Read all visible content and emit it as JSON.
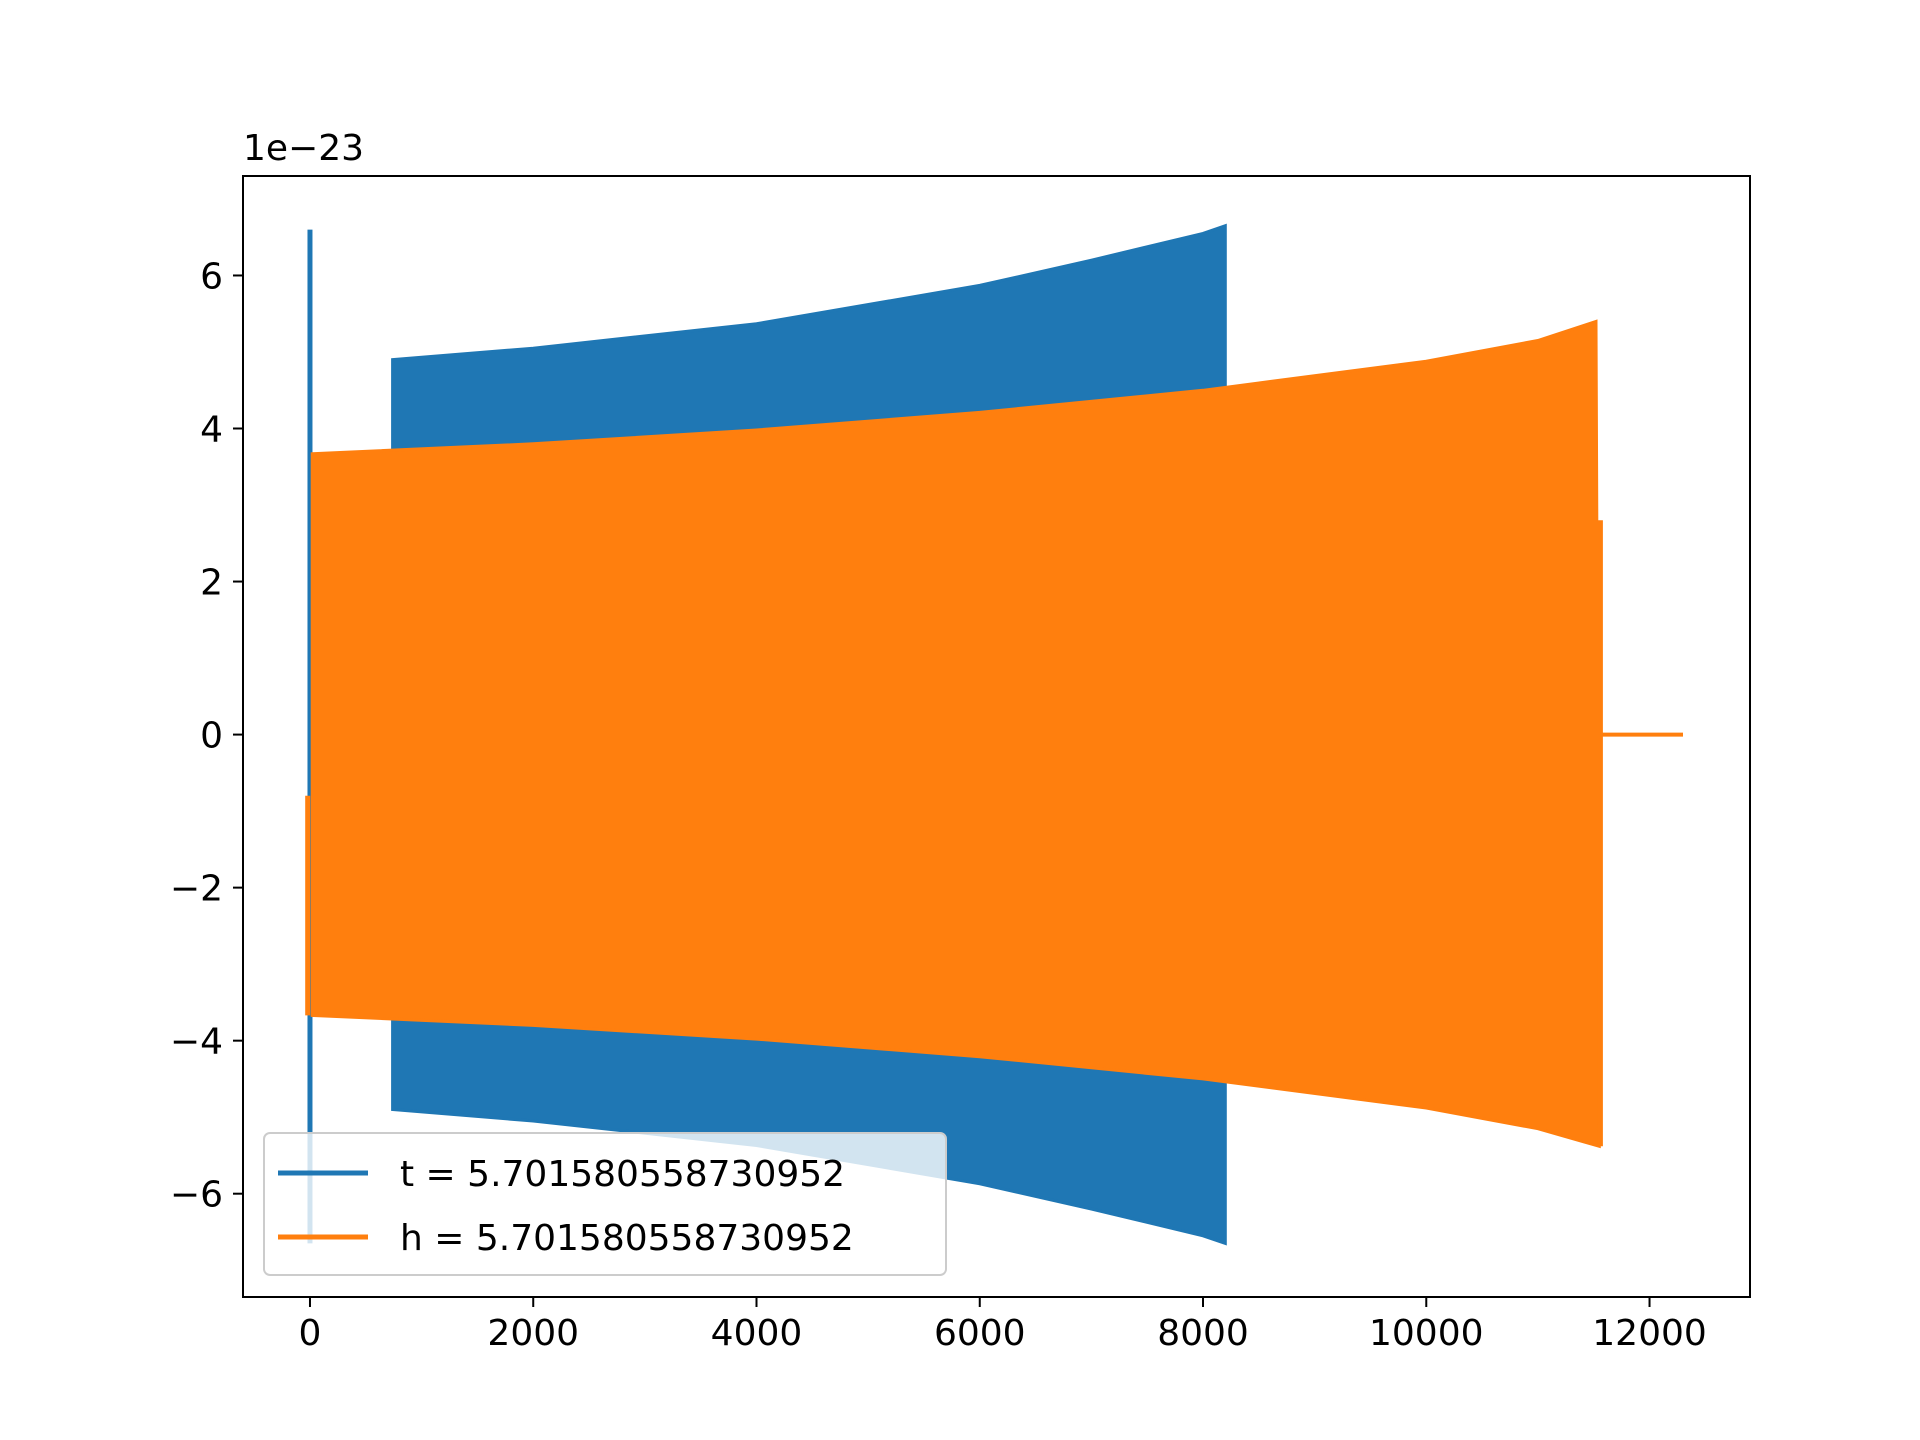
{
  "chart_data": {
    "type": "line",
    "title": "",
    "xlabel": "",
    "ylabel": "",
    "y_offset_label": "1e−23",
    "y_scale_exponent": -23,
    "xlim": [
      -600,
      12900
    ],
    "ylim": [
      -7.35,
      7.3
    ],
    "x_ticks": [
      0,
      2000,
      4000,
      6000,
      8000,
      10000,
      12000
    ],
    "x_tick_labels": [
      "0",
      "2000",
      "4000",
      "6000",
      "8000",
      "10000",
      "12000"
    ],
    "y_ticks": [
      -6,
      -4,
      -2,
      0,
      2,
      4,
      6
    ],
    "y_tick_labels": [
      "−6",
      "−4",
      "−2",
      "0",
      "2",
      "4",
      "6"
    ],
    "grid": false,
    "legend_position": "lower-left",
    "series": [
      {
        "name": "t = 5.701580558730952",
        "color": "#1f77b4",
        "description_kind": "dense-oscillation-envelope",
        "spike": {
          "x": 0,
          "ymin": -6.65,
          "ymax": 6.6
        },
        "x_start": 740,
        "x_end": 8200,
        "envelope_upper": [
          [
            740,
            4.9
          ],
          [
            2000,
            5.05
          ],
          [
            4000,
            5.37
          ],
          [
            6000,
            5.87
          ],
          [
            7000,
            6.2
          ],
          [
            8000,
            6.55
          ],
          [
            8200,
            6.65
          ]
        ],
        "envelope_lower": [
          [
            740,
            -4.9
          ],
          [
            2000,
            -5.05
          ],
          [
            4000,
            -5.37
          ],
          [
            6000,
            -5.87
          ],
          [
            7000,
            -6.2
          ],
          [
            8000,
            -6.55
          ],
          [
            8200,
            -6.65
          ]
        ]
      },
      {
        "name": "h = 5.701580558730952",
        "color": "#ff7f0e",
        "description_kind": "dense-oscillation-envelope",
        "x_start": -20,
        "x_end": 11550,
        "envelope_upper": [
          [
            20,
            3.67
          ],
          [
            2000,
            3.8
          ],
          [
            4000,
            3.98
          ],
          [
            6000,
            4.21
          ],
          [
            8000,
            4.5
          ],
          [
            10000,
            4.88
          ],
          [
            11000,
            5.15
          ],
          [
            11520,
            5.4
          ]
        ],
        "envelope_lower": [
          [
            20,
            -3.67
          ],
          [
            2000,
            -3.8
          ],
          [
            4000,
            -3.98
          ],
          [
            6000,
            -4.21
          ],
          [
            8000,
            -4.5
          ],
          [
            10000,
            -4.88
          ],
          [
            11000,
            -5.15
          ],
          [
            11550,
            -5.38
          ]
        ],
        "start_edge": [
          [
            -20,
            -0.8
          ],
          [
            -20,
            -3.67
          ]
        ],
        "end_edge": [
          [
            11560,
            2.8
          ],
          [
            11560,
            -5.38
          ]
        ],
        "tail": [
          [
            11560,
            0
          ],
          [
            12300,
            0
          ]
        ]
      }
    ],
    "colors": {
      "axes": "#000000",
      "background": "#ffffff",
      "legend_border": "#cccccc"
    }
  }
}
